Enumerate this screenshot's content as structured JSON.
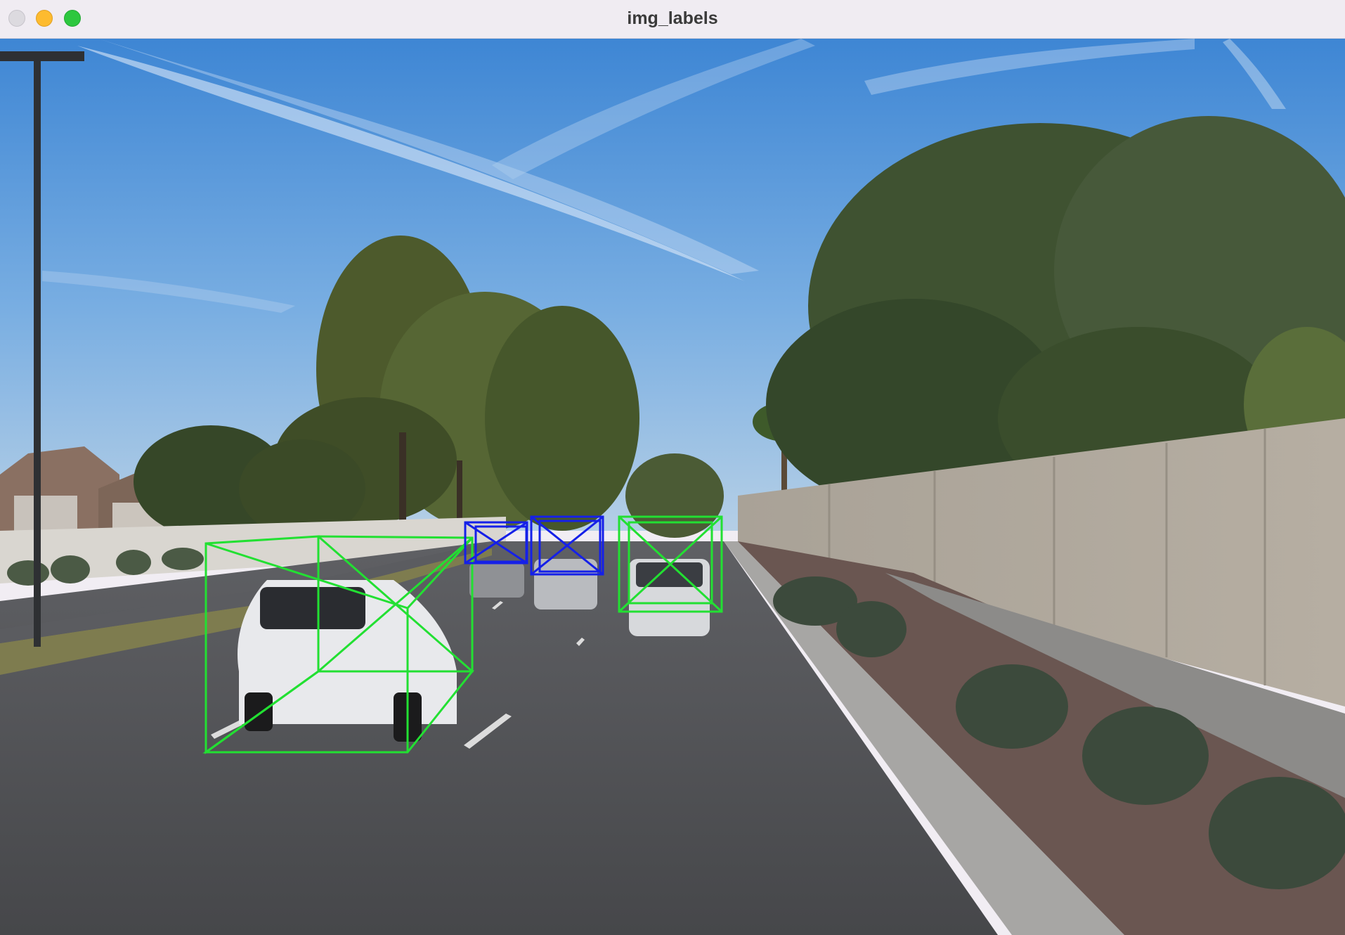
{
  "window": {
    "title": "img_labels",
    "controls": [
      "close",
      "minimize",
      "zoom"
    ]
  },
  "scene": {
    "description_free": true,
    "box_colors": {
      "near": "#22e032",
      "far": "#1520e8"
    },
    "boxes": [
      {
        "id": "car-1",
        "color": "#22e032"
      },
      {
        "id": "car-2",
        "color": "#22e032"
      },
      {
        "id": "car-3",
        "color": "#1520e8"
      },
      {
        "id": "car-4",
        "color": "#1520e8"
      }
    ]
  }
}
